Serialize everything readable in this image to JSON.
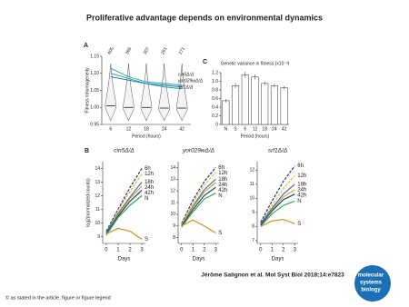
{
  "title": "Proliferative advantage depends on environmental dynamics",
  "citation": "Jérôme Salignon et al. Mol Syst Biol 2018;14:e7823",
  "copyright": "© as stated in the article, figure or figure legend",
  "logo": [
    "molecular",
    "systems",
    "biology"
  ],
  "chart_data": [
    {
      "type": "violin",
      "panel": "A",
      "xlabel": "Period (hours)",
      "ylabel": "Fitness inhomogeneity",
      "categories": [
        "6",
        "12",
        "18",
        "24",
        "42"
      ],
      "values": [
        1.005,
        1.0,
        1.0,
        0.998,
        0.998
      ],
      "counts": [
        405,
        365,
        307,
        261,
        271
      ],
      "series": [
        {
          "name": "cin5Δ/Δ",
          "color": "#2a9d8f",
          "values": [
            1.1,
            1.085,
            1.07,
            1.06,
            1.055
          ]
        },
        {
          "name": "yor029wΔ/Δ",
          "color": "#1f77b4",
          "values": [
            1.09,
            1.08,
            1.07,
            1.065,
            1.06
          ]
        },
        {
          "name": "srf1Δ/Δ",
          "color": "#17a2b8",
          "values": [
            1.115,
            1.09,
            1.075,
            1.07,
            1.065
          ]
        }
      ],
      "ylim": [
        0.95,
        1.15
      ],
      "yticks": [
        0.95,
        {
          "value": 1,
          "label": "1.00"
        },
        1.05,
        {
          "value": 1.1,
          "label": "1.10"
        },
        1.15
      ]
    },
    {
      "type": "bar",
      "panel": "C",
      "title": "Genetic variance in fitness (x10⁻³)",
      "xlabel": "Period (hours)",
      "categories": [
        "N",
        "S",
        "6",
        "12",
        "18",
        "24",
        "42"
      ],
      "values": [
        0.55,
        0.9,
        1.15,
        1.1,
        0.95,
        0.9,
        0.85
      ],
      "errors": [
        0.04,
        0.06,
        0.07,
        0.06,
        0.05,
        0.05,
        0.04
      ],
      "color": "#ffffff",
      "ylim": [
        0,
        1.2
      ],
      "yticks": [
        0,
        0.2,
        0.4,
        0.6,
        0.8,
        {
          "value": 1,
          "label": "1.0"
        },
        1.2
      ]
    },
    {
      "type": "line",
      "panel": "B",
      "title": "cin5Δ/Δ",
      "xlabel": "Days",
      "ylabel": "log2(normalized counts)",
      "x": [
        0,
        1,
        2,
        3
      ],
      "xlim": [
        -0.3,
        3.3
      ],
      "xticks": [
        0,
        1,
        2,
        3
      ],
      "ylim": [
        8.5,
        14.5
      ],
      "yticks": [
        9,
        10,
        11,
        12,
        13,
        14
      ],
      "series": [
        {
          "name": "6h",
          "color": "#1b2f8a",
          "dashed": true,
          "values": [
            9.4,
            11.0,
            12.6,
            14.0
          ]
        },
        {
          "name": "12h",
          "color": "#e8b923",
          "dashed": true,
          "values": [
            9.3,
            10.9,
            12.3,
            13.6
          ]
        },
        {
          "name": "18h",
          "color": "#3b6bd6",
          "dashed": false,
          "values": [
            9.3,
            10.7,
            11.9,
            13.0
          ]
        },
        {
          "name": "24h",
          "color": "#d9a51c",
          "dashed": false,
          "values": [
            9.2,
            10.6,
            11.8,
            12.7
          ]
        },
        {
          "name": "42h",
          "color": "#20407a",
          "dashed": false,
          "values": [
            9.2,
            10.5,
            11.6,
            12.4
          ]
        },
        {
          "name": "N",
          "color": "#3aa655",
          "dashed": false,
          "values": [
            9.1,
            10.4,
            11.3,
            12.0
          ]
        },
        {
          "name": "S",
          "color": "#d98e1a",
          "dashed": false,
          "values": [
            9.2,
            9.6,
            9.4,
            8.8
          ]
        }
      ]
    },
    {
      "type": "line",
      "title": "yor029wΔ/Δ",
      "xlabel": "Days",
      "x": [
        0,
        1,
        2,
        3
      ],
      "xlim": [
        -0.3,
        3.3
      ],
      "xticks": [
        0,
        1,
        2,
        3
      ],
      "ylim": [
        7.5,
        14.5
      ],
      "yticks": [
        8,
        9,
        10,
        11,
        12,
        13,
        14
      ],
      "series": [
        {
          "name": "6h",
          "color": "#1b2f8a",
          "dashed": true,
          "values": [
            9.2,
            11.2,
            12.8,
            14.0
          ]
        },
        {
          "name": "12h",
          "color": "#e8b923",
          "dashed": true,
          "values": [
            9.1,
            11.0,
            12.5,
            13.6
          ]
        },
        {
          "name": "18h",
          "color": "#3b6bd6",
          "dashed": false,
          "values": [
            9.0,
            10.7,
            12.1,
            13.0
          ]
        },
        {
          "name": "24h",
          "color": "#d9a51c",
          "dashed": false,
          "values": [
            9.0,
            10.6,
            11.9,
            12.7
          ]
        },
        {
          "name": "42h",
          "color": "#20407a",
          "dashed": false,
          "values": [
            9.0,
            10.4,
            11.6,
            12.3
          ]
        },
        {
          "name": "N",
          "color": "#3aa655",
          "dashed": false,
          "values": [
            8.9,
            10.2,
            11.3,
            11.8
          ]
        },
        {
          "name": "S",
          "color": "#d98e1a",
          "dashed": false,
          "values": [
            9.0,
            9.5,
            9.0,
            8.4
          ]
        }
      ]
    },
    {
      "type": "line",
      "title": "srf1Δ/Δ",
      "xlabel": "Days",
      "x": [
        0,
        1,
        2,
        3
      ],
      "xlim": [
        -0.3,
        3.3
      ],
      "xticks": [
        0,
        1,
        2,
        3
      ],
      "ylim": [
        6.8,
        12.6
      ],
      "yticks": [
        7,
        8,
        9,
        10,
        11,
        12
      ],
      "series": [
        {
          "name": "6h",
          "color": "#1b2f8a",
          "dashed": true,
          "values": [
            8.3,
            9.8,
            11.2,
            12.3
          ]
        },
        {
          "name": "12h",
          "color": "#e8b923",
          "dashed": true,
          "values": [
            8.2,
            9.5,
            10.7,
            11.6
          ]
        },
        {
          "name": "18h",
          "color": "#3b6bd6",
          "dashed": false,
          "values": [
            8.2,
            9.3,
            10.3,
            11.0
          ]
        },
        {
          "name": "24h",
          "color": "#d9a51c",
          "dashed": false,
          "values": [
            8.1,
            9.2,
            10.1,
            10.6
          ]
        },
        {
          "name": "42h",
          "color": "#20407a",
          "dashed": false,
          "values": [
            8.1,
            9.1,
            9.9,
            10.3
          ]
        },
        {
          "name": "N",
          "color": "#3aa655",
          "dashed": false,
          "values": [
            8.0,
            8.9,
            9.5,
            9.8
          ]
        },
        {
          "name": "S",
          "color": "#d98e1a",
          "dashed": false,
          "values": [
            8.0,
            8.4,
            8.5,
            8.2
          ]
        }
      ]
    }
  ]
}
